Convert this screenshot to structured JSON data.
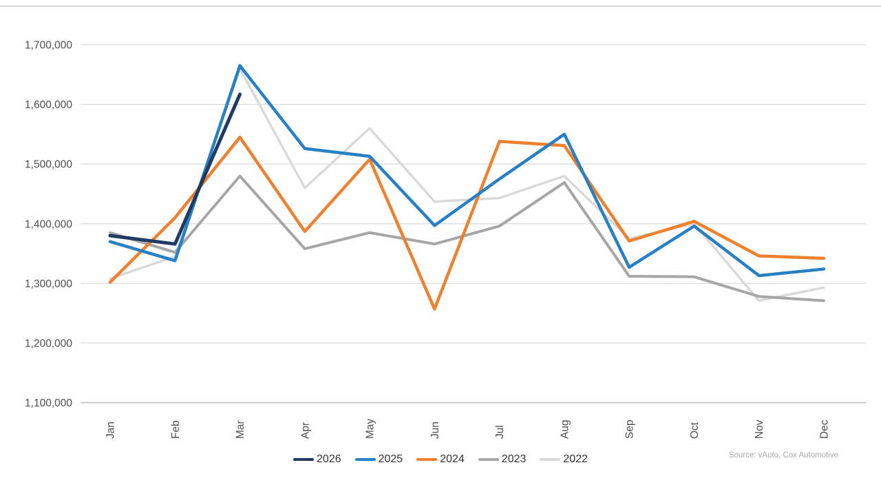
{
  "source_note": "Source: vAuto, Cox Automotive",
  "axis": {
    "ytick_labels": [
      "1,700,000",
      "1,600,000",
      "1,500,000",
      "1,400,000",
      "1,300,000",
      "1,200,000",
      "1,100,000"
    ],
    "label_color": "#4d4d4d",
    "gridline_color": "#d9d9d9",
    "axisline_color": "#bdbdbd"
  },
  "chart_data": {
    "type": "line",
    "title": "",
    "xlabel": "",
    "ylabel": "",
    "categories": [
      "Jan",
      "Feb",
      "Mar",
      "Apr",
      "May",
      "Jun",
      "Jul",
      "Aug",
      "Sep",
      "Oct",
      "Nov",
      "Dec"
    ],
    "ylim": [
      1100000,
      1700000
    ],
    "ytick_step": 100000,
    "grid": true,
    "legend_position": "bottom",
    "series": [
      {
        "name": "2026",
        "color": "#1f3b63",
        "values": [
          1380000,
          1366000,
          1617000
        ]
      },
      {
        "name": "2025",
        "color": "#2880c4",
        "values": [
          1370000,
          1338000,
          1665000,
          1526000,
          1513000,
          1397000,
          1475000,
          1550000,
          1327000,
          1396000,
          1313000,
          1324000
        ]
      },
      {
        "name": "2024",
        "color": "#ee8130",
        "values": [
          1302000,
          1410000,
          1545000,
          1387000,
          1508000,
          1257000,
          1538000,
          1531000,
          1371000,
          1404000,
          1346000,
          1342000
        ]
      },
      {
        "name": "2023",
        "color": "#a6a6a6",
        "values": [
          1385000,
          1352000,
          1480000,
          1358000,
          1385000,
          1366000,
          1396000,
          1469000,
          1312000,
          1311000,
          1278000,
          1271000
        ]
      },
      {
        "name": "2022",
        "color": "#d9d9d9",
        "values": [
          1308000,
          1345000,
          1660000,
          1460000,
          1560000,
          1437000,
          1443000,
          1480000,
          1375000,
          1400000,
          1271000,
          1293000
        ]
      }
    ]
  }
}
